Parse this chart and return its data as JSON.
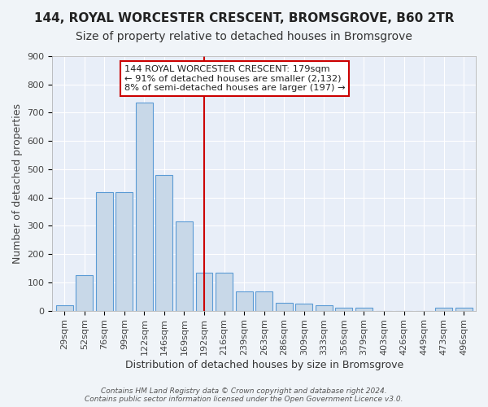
{
  "title1": "144, ROYAL WORCESTER CRESCENT, BROMSGROVE, B60 2TR",
  "title2": "Size of property relative to detached houses in Bromsgrove",
  "xlabel": "Distribution of detached houses by size in Bromsgrove",
  "ylabel": "Number of detached properties",
  "categories": [
    "29sqm",
    "52sqm",
    "76sqm",
    "99sqm",
    "122sqm",
    "146sqm",
    "169sqm",
    "192sqm",
    "216sqm",
    "239sqm",
    "263sqm",
    "286sqm",
    "309sqm",
    "333sqm",
    "356sqm",
    "379sqm",
    "403sqm",
    "426sqm",
    "449sqm",
    "473sqm",
    "496sqm"
  ],
  "values": [
    20,
    125,
    420,
    420,
    735,
    480,
    315,
    135,
    135,
    68,
    68,
    28,
    25,
    20,
    10,
    10,
    0,
    0,
    0,
    10,
    10
  ],
  "bar_color": "#c8d8e8",
  "bar_edge_color": "#5b9bd5",
  "red_line_x": 7.0,
  "annotation_text": "144 ROYAL WORCESTER CRESCENT: 179sqm\n← 91% of detached houses are smaller (2,132)\n8% of semi-detached houses are larger (197) →",
  "annotation_box_color": "#ffffff",
  "annotation_box_edge": "#cc0000",
  "ylim": [
    0,
    900
  ],
  "yticks": [
    0,
    100,
    200,
    300,
    400,
    500,
    600,
    700,
    800,
    900
  ],
  "bg_color": "#e8eef8",
  "fig_bg_color": "#f0f4f8",
  "footer": "Contains HM Land Registry data © Crown copyright and database right 2024.\nContains public sector information licensed under the Open Government Licence v3.0.",
  "title1_fontsize": 11,
  "title2_fontsize": 10,
  "xlabel_fontsize": 9,
  "ylabel_fontsize": 9,
  "tick_fontsize": 8
}
